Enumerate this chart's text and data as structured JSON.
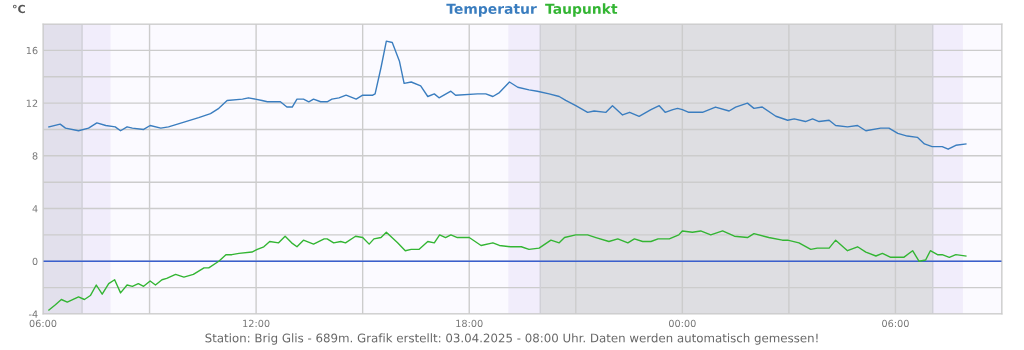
{
  "chart_data": {
    "type": "line",
    "ylabel": "°C",
    "legend": "top",
    "grid": true,
    "marker": "none",
    "line_style": "solid",
    "xlim": [
      "2025-04-02T06:00",
      "2025-04-03T09:00"
    ],
    "xticks": [
      {
        "value": "2025-04-02T06:00",
        "label": "06:00"
      },
      {
        "value": "2025-04-02T09:00",
        "label": null
      },
      {
        "value": "2025-04-02T12:00",
        "label": "12:00"
      },
      {
        "value": "2025-04-02T15:00",
        "label": null
      },
      {
        "value": "2025-04-02T18:00",
        "label": "18:00"
      },
      {
        "value": "2025-04-02T21:00",
        "label": null
      },
      {
        "value": "2025-04-03T00:00",
        "label": "00:00"
      },
      {
        "value": "2025-04-03T03:00",
        "label": null
      },
      {
        "value": "2025-04-03T06:00",
        "label": "06:00"
      },
      {
        "value": "2025-04-03T09:00",
        "label": null
      }
    ],
    "ylim": [
      -4,
      18
    ],
    "yticks": [
      -4,
      {
        "value": -2,
        "label": null
      },
      0,
      {
        "value": 2,
        "label": null
      },
      4,
      {
        "value": 6,
        "label": null
      },
      8,
      {
        "value": 10,
        "label": null
      },
      12,
      {
        "value": 14,
        "label": null
      },
      16,
      {
        "value": 18,
        "label": null
      }
    ],
    "bands": [
      {
        "axis": "x",
        "from": "2025-04-02T06:00",
        "to": "2025-04-02T07:06",
        "color": "#e2e0ec"
      },
      {
        "axis": "x",
        "from": "2025-04-02T07:06",
        "to": "2025-04-02T07:54",
        "color": "#f1edfb"
      },
      {
        "axis": "x",
        "from": "2025-04-02T19:06",
        "to": "2025-04-02T20:00",
        "color": "#f1edfb"
      },
      {
        "axis": "x",
        "from": "2025-04-02T20:00",
        "to": "2025-04-03T07:03",
        "color": "#dedee2"
      },
      {
        "axis": "x",
        "from": "2025-04-03T07:03",
        "to": "2025-04-03T07:54",
        "color": "#f1edfb"
      }
    ],
    "ref_lines": [
      {
        "axis": "y",
        "value": 0,
        "color": "#3a5fcd",
        "line_style": "solid"
      },
      {
        "axis": "x",
        "value": "2025-04-02T07:06",
        "color": "#cfcfd6",
        "line_style": "solid"
      },
      {
        "axis": "x",
        "value": "2025-04-02T20:00",
        "color": "#cfcfd6",
        "line_style": "solid"
      },
      {
        "axis": "x",
        "value": "2025-04-03T07:03",
        "color": "#cfcfd6",
        "line_style": "solid"
      }
    ],
    "annotations": [
      "Station: Brig Glis - 689m. Grafik erstellt: 03.04.2025 - 08:00 Uhr. Daten werden automatisch gemessen!"
    ],
    "series": [
      {
        "name": "Temperatur",
        "color": "#3a7dbf",
        "x": [
          "2025-04-02T06:10",
          "2025-04-02T06:29",
          "2025-04-02T06:38",
          "2025-04-02T07:00",
          "2025-04-02T07:17",
          "2025-04-02T07:31",
          "2025-04-02T07:46",
          "2025-04-02T08:02",
          "2025-04-02T08:11",
          "2025-04-02T08:22",
          "2025-04-02T08:31",
          "2025-04-02T08:50",
          "2025-04-02T09:01",
          "2025-04-02T09:19",
          "2025-04-02T09:32",
          "2025-04-02T10:01",
          "2025-04-02T10:23",
          "2025-04-02T10:43",
          "2025-04-02T10:57",
          "2025-04-02T11:11",
          "2025-04-02T11:37",
          "2025-04-02T11:47",
          "2025-04-02T12:10",
          "2025-04-02T12:19",
          "2025-04-02T12:41",
          "2025-04-02T12:52",
          "2025-04-02T13:01",
          "2025-04-02T13:09",
          "2025-04-02T13:20",
          "2025-04-02T13:29",
          "2025-04-02T13:37",
          "2025-04-02T13:49",
          "2025-04-02T14:00",
          "2025-04-02T14:08",
          "2025-04-02T14:20",
          "2025-04-02T14:32",
          "2025-04-02T14:49",
          "2025-04-02T15:00",
          "2025-04-02T15:17",
          "2025-04-02T15:21",
          "2025-04-02T15:31",
          "2025-04-02T15:40",
          "2025-04-02T15:50",
          "2025-04-02T16:02",
          "2025-04-02T16:10",
          "2025-04-02T16:22",
          "2025-04-02T16:38",
          "2025-04-02T16:50",
          "2025-04-02T17:01",
          "2025-04-02T17:09",
          "2025-04-02T17:29",
          "2025-04-02T17:37",
          "2025-04-02T18:14",
          "2025-04-02T18:28",
          "2025-04-02T18:40",
          "2025-04-02T18:51",
          "2025-04-02T19:08",
          "2025-04-02T19:22",
          "2025-04-02T19:41",
          "2025-04-02T19:55",
          "2025-04-02T20:15",
          "2025-04-02T20:32",
          "2025-04-02T20:43",
          "2025-04-02T21:00",
          "2025-04-02T21:20",
          "2025-04-02T21:31",
          "2025-04-02T21:51",
          "2025-04-02T22:02",
          "2025-04-02T22:19",
          "2025-04-02T22:31",
          "2025-04-02T22:47",
          "2025-04-02T23:07",
          "2025-04-02T23:21",
          "2025-04-02T23:31",
          "2025-04-02T23:44",
          "2025-04-02T23:52",
          "2025-04-03T00:00",
          "2025-04-03T00:11",
          "2025-04-03T00:34",
          "2025-04-03T00:56",
          "2025-04-03T01:19",
          "2025-04-03T01:30",
          "2025-04-03T01:50",
          "2025-04-03T02:01",
          "2025-04-03T02:15",
          "2025-04-03T02:38",
          "2025-04-03T02:58",
          "2025-04-03T03:09",
          "2025-04-03T03:28",
          "2025-04-03T03:40",
          "2025-04-03T03:51",
          "2025-04-03T04:08",
          "2025-04-03T04:19",
          "2025-04-03T04:39",
          "2025-04-03T04:56",
          "2025-04-03T05:10",
          "2025-04-03T05:35",
          "2025-04-03T05:49",
          "2025-04-03T06:04",
          "2025-04-03T06:20",
          "2025-04-03T06:37",
          "2025-04-03T06:49",
          "2025-04-03T07:02",
          "2025-04-03T07:19",
          "2025-04-03T07:29",
          "2025-04-03T07:42",
          "2025-04-03T07:59"
        ],
        "values": [
          10.2,
          10.4,
          10.1,
          9.9,
          10.1,
          10.5,
          10.3,
          10.2,
          9.9,
          10.2,
          10.1,
          10.0,
          10.3,
          10.1,
          10.2,
          10.6,
          10.9,
          11.2,
          11.6,
          12.2,
          12.3,
          12.4,
          12.2,
          12.1,
          12.1,
          11.7,
          11.7,
          12.3,
          12.3,
          12.1,
          12.3,
          12.1,
          12.1,
          12.3,
          12.4,
          12.6,
          12.3,
          12.6,
          12.6,
          12.7,
          14.7,
          16.7,
          16.6,
          15.2,
          13.5,
          13.6,
          13.3,
          12.5,
          12.7,
          12.4,
          12.9,
          12.6,
          12.7,
          12.7,
          12.5,
          12.8,
          13.6,
          13.2,
          13.0,
          12.9,
          12.7,
          12.5,
          12.2,
          11.8,
          11.3,
          11.4,
          11.3,
          11.8,
          11.1,
          11.3,
          11.0,
          11.5,
          11.8,
          11.3,
          11.5,
          11.6,
          11.5,
          11.3,
          11.3,
          11.7,
          11.4,
          11.7,
          12.0,
          11.6,
          11.7,
          11.0,
          10.7,
          10.8,
          10.6,
          10.8,
          10.6,
          10.7,
          10.3,
          10.2,
          10.3,
          9.9,
          10.1,
          10.1,
          9.7,
          9.5,
          9.4,
          8.9,
          8.7,
          8.7,
          8.5,
          8.8,
          8.9
        ]
      },
      {
        "name": "Taupunkt",
        "color": "#33b533",
        "x": [
          "2025-04-02T06:10",
          "2025-04-02T06:21",
          "2025-04-02T06:31",
          "2025-04-02T06:41",
          "2025-04-02T07:00",
          "2025-04-02T07:10",
          "2025-04-02T07:20",
          "2025-04-02T07:30",
          "2025-04-02T07:40",
          "2025-04-02T07:51",
          "2025-04-02T08:01",
          "2025-04-02T08:11",
          "2025-04-02T08:22",
          "2025-04-02T08:31",
          "2025-04-02T08:41",
          "2025-04-02T08:50",
          "2025-04-02T09:01",
          "2025-04-02T09:10",
          "2025-04-02T09:21",
          "2025-04-02T09:29",
          "2025-04-02T09:44",
          "2025-04-02T09:58",
          "2025-04-02T10:14",
          "2025-04-02T10:32",
          "2025-04-02T10:40",
          "2025-04-02T10:57",
          "2025-04-02T11:09",
          "2025-04-02T11:19",
          "2025-04-02T11:31",
          "2025-04-02T11:53",
          "2025-04-02T12:02",
          "2025-04-02T12:13",
          "2025-04-02T12:23",
          "2025-04-02T12:38",
          "2025-04-02T12:49",
          "2025-04-02T13:00",
          "2025-04-02T13:09",
          "2025-04-02T13:20",
          "2025-04-02T13:37",
          "2025-04-02T13:55",
          "2025-04-02T14:00",
          "2025-04-02T14:11",
          "2025-04-02T14:23",
          "2025-04-02T14:31",
          "2025-04-02T14:48",
          "2025-04-02T15:00",
          "2025-04-02T15:11",
          "2025-04-02T15:19",
          "2025-04-02T15:31",
          "2025-04-02T15:40",
          "2025-04-02T15:59",
          "2025-04-02T16:12",
          "2025-04-02T16:22",
          "2025-04-02T16:35",
          "2025-04-02T16:50",
          "2025-04-02T17:01",
          "2025-04-02T17:10",
          "2025-04-02T17:20",
          "2025-04-02T17:29",
          "2025-04-02T17:40",
          "2025-04-02T18:00",
          "2025-04-02T18:20",
          "2025-04-02T18:40",
          "2025-04-02T18:51",
          "2025-04-02T19:10",
          "2025-04-02T19:28",
          "2025-04-02T19:41",
          "2025-04-02T19:58",
          "2025-04-02T20:18",
          "2025-04-02T20:32",
          "2025-04-02T20:41",
          "2025-04-02T21:00",
          "2025-04-02T21:20",
          "2025-04-02T21:34",
          "2025-04-02T21:56",
          "2025-04-02T22:11",
          "2025-04-02T22:28",
          "2025-04-02T22:39",
          "2025-04-02T22:53",
          "2025-04-02T23:07",
          "2025-04-02T23:19",
          "2025-04-02T23:38",
          "2025-04-02T23:54",
          "2025-04-03T00:00",
          "2025-04-03T00:17",
          "2025-04-03T00:31",
          "2025-04-03T00:48",
          "2025-04-03T01:08",
          "2025-04-03T01:28",
          "2025-04-03T01:50",
          "2025-04-03T02:01",
          "2025-04-03T02:26",
          "2025-04-03T02:49",
          "2025-04-03T02:58",
          "2025-04-03T03:17",
          "2025-04-03T03:37",
          "2025-04-03T03:48",
          "2025-04-03T04:08",
          "2025-04-03T04:19",
          "2025-04-03T04:39",
          "2025-04-03T04:56",
          "2025-04-03T05:10",
          "2025-04-03T05:27",
          "2025-04-03T05:38",
          "2025-04-03T05:52",
          "2025-04-03T06:14",
          "2025-04-03T06:29",
          "2025-04-03T06:40",
          "2025-04-03T06:51",
          "2025-04-03T06:59",
          "2025-04-03T07:11",
          "2025-04-03T07:19",
          "2025-04-03T07:31",
          "2025-04-03T07:42",
          "2025-04-03T07:59"
        ],
        "values": [
          -3.7,
          -3.3,
          -2.9,
          -3.1,
          -2.7,
          -2.9,
          -2.6,
          -1.8,
          -2.5,
          -1.7,
          -1.4,
          -2.4,
          -1.8,
          -1.9,
          -1.7,
          -1.9,
          -1.5,
          -1.8,
          -1.4,
          -1.3,
          -1.0,
          -1.2,
          -1.0,
          -0.5,
          -0.5,
          0.0,
          0.5,
          0.5,
          0.6,
          0.7,
          0.9,
          1.1,
          1.5,
          1.4,
          1.9,
          1.4,
          1.1,
          1.6,
          1.3,
          1.7,
          1.7,
          1.4,
          1.5,
          1.4,
          1.9,
          1.8,
          1.3,
          1.7,
          1.8,
          2.2,
          1.4,
          0.8,
          0.9,
          0.9,
          1.5,
          1.4,
          2.0,
          1.8,
          2.0,
          1.8,
          1.8,
          1.2,
          1.4,
          1.2,
          1.1,
          1.1,
          0.9,
          1.0,
          1.6,
          1.4,
          1.8,
          2.0,
          2.0,
          1.8,
          1.5,
          1.7,
          1.4,
          1.7,
          1.5,
          1.5,
          1.7,
          1.7,
          2.0,
          2.3,
          2.2,
          2.3,
          2.0,
          2.3,
          1.9,
          1.8,
          2.1,
          1.8,
          1.6,
          1.6,
          1.4,
          0.9,
          1.0,
          1.0,
          1.6,
          0.8,
          1.1,
          0.7,
          0.4,
          0.6,
          0.3,
          0.3,
          0.8,
          0.0,
          0.1,
          0.8,
          0.5,
          0.5,
          0.3,
          0.5,
          0.4
        ]
      }
    ]
  }
}
